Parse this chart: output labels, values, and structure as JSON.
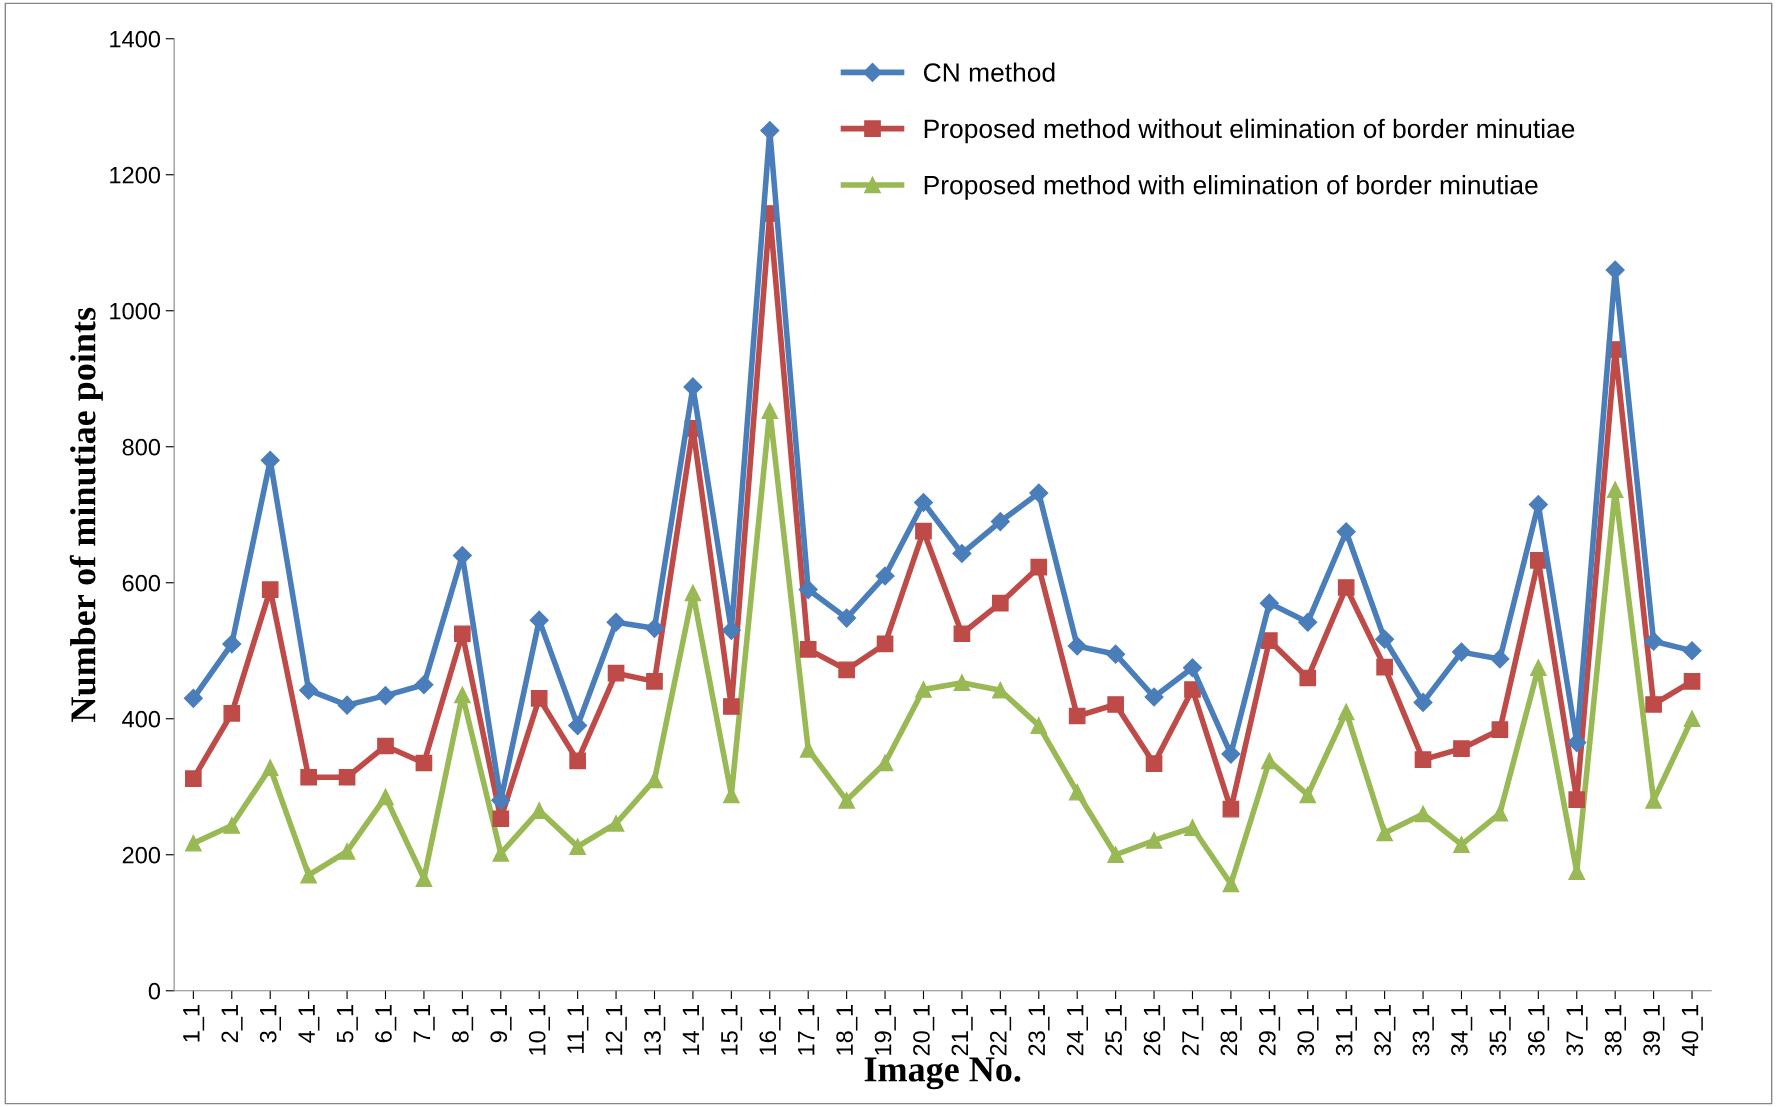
{
  "chart_data": {
    "type": "line",
    "xlabel": "Image No.",
    "ylabel": "Number of minutiae points",
    "categories": [
      "1_1",
      "2_1",
      "3_1",
      "4_1",
      "5_1",
      "6_1",
      "7_1",
      "8_1",
      "9_1",
      "10_1",
      "11_1",
      "12_1",
      "13_1",
      "14_1",
      "15_1",
      "16_1",
      "17_1",
      "18_1",
      "19_1",
      "20_1",
      "21_1",
      "22_1",
      "23_1",
      "24_1",
      "25_1",
      "26_1",
      "27_1",
      "28_1",
      "29_1",
      "30_1",
      "31_1",
      "32_1",
      "33_1",
      "34_1",
      "35_1",
      "36_1",
      "37_1",
      "38_1",
      "39_1",
      "40_1"
    ],
    "series": [
      {
        "name": "CN method",
        "color": "#4a7ebb",
        "marker": "diamond",
        "values": [
          430,
          510,
          780,
          442,
          420,
          434,
          450,
          640,
          280,
          545,
          390,
          542,
          533,
          888,
          530,
          1265,
          590,
          548,
          610,
          718,
          643,
          690,
          732,
          507,
          495,
          432,
          475,
          348,
          570,
          542,
          675,
          517,
          424,
          498,
          488,
          715,
          365,
          1060,
          514,
          500
        ]
      },
      {
        "name": "Proposed method without elimination of border minutiae",
        "color": "#be4b48",
        "marker": "square",
        "values": [
          312,
          408,
          590,
          314,
          314,
          360,
          335,
          525,
          253,
          430,
          338,
          467,
          455,
          827,
          418,
          1143,
          502,
          472,
          510,
          676,
          525,
          570,
          623,
          404,
          421,
          334,
          443,
          267,
          515,
          460,
          593,
          476,
          340,
          356,
          384,
          633,
          281,
          943,
          421,
          455
        ]
      },
      {
        "name": "Proposed method with elimination of border minutiae",
        "color": "#98b954",
        "marker": "triangle",
        "values": [
          217,
          243,
          328,
          170,
          205,
          285,
          165,
          435,
          202,
          265,
          212,
          246,
          310,
          585,
          288,
          853,
          355,
          280,
          335,
          443,
          453,
          442,
          390,
          292,
          200,
          221,
          240,
          157,
          338,
          288,
          410,
          232,
          260,
          215,
          261,
          475,
          175,
          737,
          280,
          400
        ]
      }
    ],
    "ylim": [
      0,
      1400
    ],
    "yticks": [
      0,
      200,
      400,
      600,
      800,
      1000,
      1200,
      1400
    ],
    "grid": false,
    "legend": "top",
    "line_style": "solid"
  }
}
